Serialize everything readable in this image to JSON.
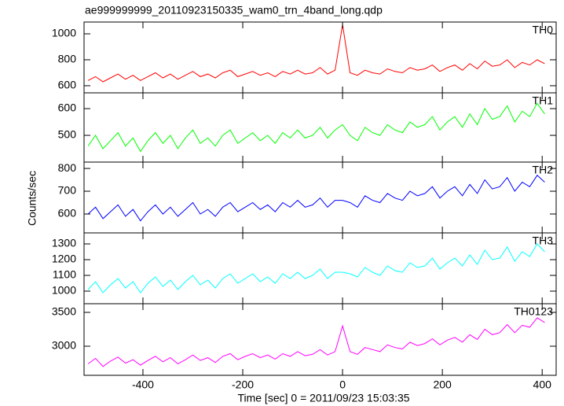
{
  "chart_data": {
    "type": "line",
    "title": "ae999999999_20110923150335_wam0_trn_4band_long.qdp",
    "xlabel": "Time [sec] 0 = 2011/09/23 15:03:35",
    "ylabel": "Counts/sec",
    "xlim": [
      -518,
      428
    ],
    "xticks": [
      -400,
      -200,
      0,
      200,
      400
    ],
    "x": [
      -510,
      -495,
      -480,
      -465,
      -450,
      -435,
      -420,
      -405,
      -390,
      -375,
      -360,
      -345,
      -330,
      -315,
      -300,
      -285,
      -270,
      -255,
      -240,
      -225,
      -210,
      -195,
      -180,
      -165,
      -150,
      -135,
      -120,
      -105,
      -90,
      -75,
      -60,
      -45,
      -30,
      -15,
      0,
      15,
      30,
      45,
      60,
      75,
      90,
      105,
      120,
      135,
      150,
      165,
      180,
      195,
      210,
      225,
      240,
      255,
      270,
      285,
      300,
      315,
      330,
      345,
      360,
      375,
      390,
      405
    ],
    "series": [
      {
        "name": "TH0",
        "color": "#ff0000",
        "ylim": [
          545,
          1091
        ],
        "yticks": [
          600,
          800,
          1000
        ],
        "values": [
          640,
          670,
          630,
          660,
          690,
          650,
          680,
          640,
          670,
          700,
          660,
          690,
          650,
          680,
          710,
          670,
          690,
          660,
          700,
          720,
          670,
          690,
          710,
          680,
          700,
          670,
          710,
          690,
          720,
          690,
          700,
          740,
          690,
          720,
          1070,
          700,
          680,
          720,
          700,
          690,
          730,
          710,
          700,
          740,
          720,
          730,
          760,
          710,
          740,
          760,
          720,
          770,
          730,
          790,
          750,
          760,
          800,
          740,
          780,
          760,
          800,
          770
        ]
      },
      {
        "name": "TH1",
        "color": "#00ff00",
        "ylim": [
          400,
          659
        ],
        "yticks": [
          500,
          600
        ],
        "values": [
          460,
          500,
          450,
          480,
          510,
          460,
          490,
          440,
          480,
          510,
          470,
          500,
          450,
          490,
          520,
          470,
          490,
          460,
          500,
          520,
          470,
          490,
          510,
          480,
          500,
          470,
          510,
          490,
          520,
          490,
          500,
          530,
          490,
          520,
          540,
          500,
          480,
          530,
          510,
          500,
          540,
          520,
          510,
          550,
          530,
          540,
          570,
          520,
          550,
          570,
          530,
          580,
          540,
          600,
          560,
          570,
          610,
          550,
          590,
          570,
          620,
          580
        ]
      },
      {
        "name": "TH2",
        "color": "#0000ff",
        "ylim": [
          517,
          828
        ],
        "yticks": [
          600,
          700,
          800
        ],
        "values": [
          600,
          630,
          580,
          610,
          640,
          590,
          620,
          570,
          610,
          640,
          600,
          630,
          590,
          620,
          650,
          600,
          620,
          590,
          630,
          650,
          610,
          630,
          650,
          620,
          640,
          610,
          650,
          630,
          660,
          630,
          640,
          670,
          630,
          660,
          660,
          650,
          630,
          680,
          660,
          650,
          690,
          670,
          660,
          700,
          680,
          690,
          720,
          670,
          700,
          720,
          680,
          730,
          690,
          750,
          710,
          720,
          760,
          700,
          740,
          720,
          770,
          740
        ]
      },
      {
        "name": "TH3",
        "color": "#00ffff",
        "ylim": [
          920,
          1370
        ],
        "yticks": [
          1000,
          1100,
          1200,
          1300
        ],
        "values": [
          1010,
          1060,
          990,
          1040,
          1080,
          1020,
          1060,
          990,
          1050,
          1090,
          1030,
          1070,
          1010,
          1060,
          1100,
          1040,
          1070,
          1020,
          1080,
          1110,
          1050,
          1080,
          1110,
          1060,
          1090,
          1050,
          1110,
          1080,
          1120,
          1080,
          1100,
          1140,
          1080,
          1120,
          1120,
          1110,
          1090,
          1150,
          1120,
          1100,
          1160,
          1130,
          1120,
          1180,
          1150,
          1160,
          1210,
          1140,
          1180,
          1210,
          1160,
          1230,
          1170,
          1260,
          1200,
          1210,
          1280,
          1190,
          1250,
          1220,
          1300,
          1250
        ]
      },
      {
        "name": "TH0123",
        "color": "#ff00ff",
        "ylim": [
          2570,
          3628
        ],
        "yticks": [
          3000,
          3500
        ],
        "values": [
          2740,
          2820,
          2700,
          2780,
          2840,
          2750,
          2800,
          2720,
          2790,
          2850,
          2770,
          2830,
          2740,
          2800,
          2870,
          2790,
          2830,
          2760,
          2850,
          2890,
          2800,
          2850,
          2890,
          2830,
          2870,
          2810,
          2890,
          2850,
          2920,
          2860,
          2880,
          2950,
          2870,
          2920,
          3300,
          2920,
          2880,
          2980,
          2950,
          2920,
          3020,
          2980,
          2960,
          3060,
          3010,
          3040,
          3110,
          3020,
          3090,
          3130,
          3060,
          3170,
          3100,
          3250,
          3170,
          3200,
          3320,
          3200,
          3310,
          3280,
          3420,
          3350
        ]
      }
    ]
  }
}
